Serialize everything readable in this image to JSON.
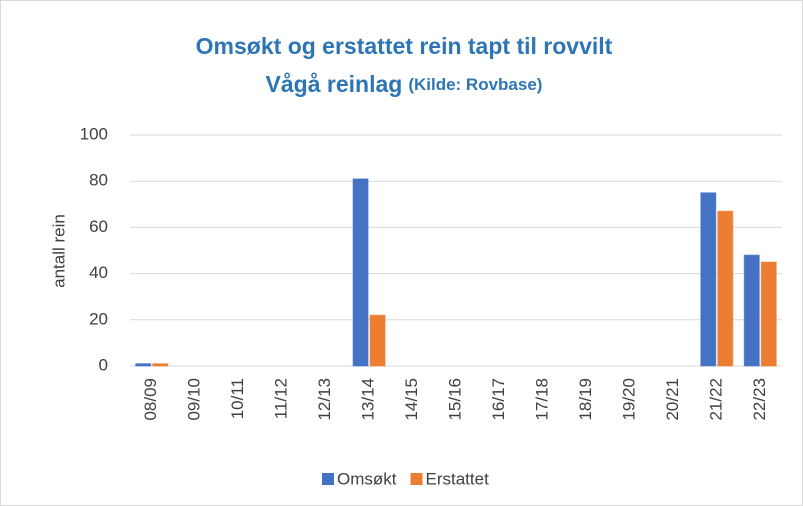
{
  "chart_data": {
    "type": "bar",
    "title": "Omsøkt og erstattet rein tapt til rovvilt",
    "subtitle": "Vågå reinlag",
    "source": "(Kilde: Rovbase)",
    "y_label": "antall rein",
    "categories": [
      "08/09",
      "09/10",
      "10/11",
      "11/12",
      "12/13",
      "13/14",
      "14/15",
      "15/16",
      "16/17",
      "17/18",
      "18/19",
      "19/20",
      "20/21",
      "21/22",
      "22/23"
    ],
    "series": [
      {
        "name": "Omsøkt",
        "color": "#4472c4",
        "values": [
          1,
          0,
          0,
          0,
          0,
          81,
          0,
          0,
          0,
          0,
          0,
          0,
          0,
          75,
          48
        ]
      },
      {
        "name": "Erstattet",
        "color": "#ed7d31",
        "values": [
          1,
          0,
          0,
          0,
          0,
          22,
          0,
          0,
          0,
          0,
          0,
          0,
          0,
          67,
          45
        ]
      }
    ],
    "ylim": [
      0,
      100
    ],
    "yticks": [
      0,
      20,
      40,
      60,
      80,
      100
    ],
    "grid": true,
    "legend": "bottom"
  }
}
